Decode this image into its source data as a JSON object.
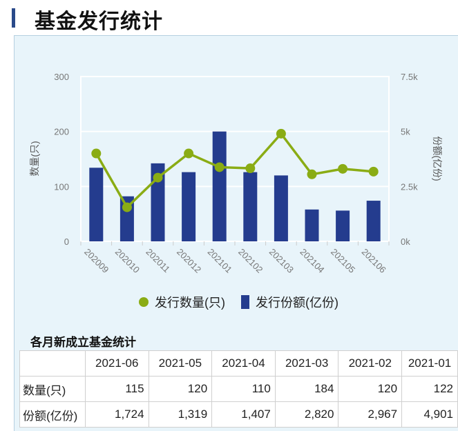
{
  "page": {
    "title": "基金发行统计"
  },
  "colors": {
    "bar": "#243c8e",
    "line": "#8aac14",
    "accent": "#2a4a8a",
    "panel": "#e8f4fa"
  },
  "chart_data": {
    "type": "bar+line",
    "categories": [
      "202009",
      "202010",
      "202011",
      "202012",
      "202101",
      "202102",
      "202103",
      "202104",
      "202105",
      "202106"
    ],
    "series": [
      {
        "name": "发行数量(只)",
        "type": "line",
        "axis": "left",
        "values": [
          160,
          62,
          116,
          160,
          135,
          133,
          196,
          122,
          132,
          127
        ]
      },
      {
        "name": "发行份额(亿份)",
        "type": "bar",
        "axis": "right",
        "values": [
          3350,
          2050,
          3550,
          3150,
          5000,
          3150,
          3000,
          1450,
          1400,
          1850
        ]
      }
    ],
    "y_left": {
      "label": "数量(只)",
      "ylim": [
        0,
        300
      ],
      "ticks": [
        "300",
        "200",
        "100",
        "0"
      ]
    },
    "y_right": {
      "label": "份额(亿份)",
      "ylim": [
        0,
        7500
      ],
      "ticks": [
        "7.5k",
        "5k",
        "2.5k",
        "0k"
      ]
    },
    "legend": [
      "发行数量(只)",
      "发行份额(亿份)"
    ],
    "legend_position": "bottom",
    "grid": true
  },
  "table": {
    "title": "各月新成立基金统计",
    "columns": [
      "2021-06",
      "2021-05",
      "2021-04",
      "2021-03",
      "2021-02",
      "2021-01"
    ],
    "rows": [
      {
        "label": "数量(只)",
        "values": [
          "115",
          "120",
          "110",
          "184",
          "120",
          "122"
        ]
      },
      {
        "label": "份额(亿份)",
        "values": [
          "1,724",
          "1,319",
          "1,407",
          "2,820",
          "2,967",
          "4,901"
        ]
      }
    ]
  }
}
